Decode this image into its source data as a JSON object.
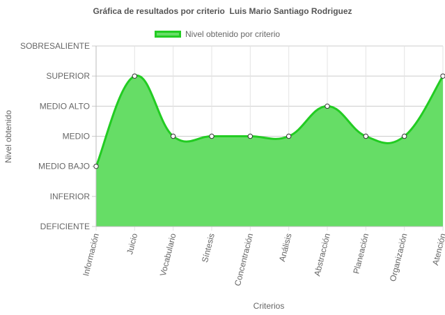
{
  "chart_data": {
    "type": "line",
    "title": "Gráfica de resultados por criterio  Luis Mario Santiago Rodriguez",
    "xlabel": "Criterios",
    "ylabel": "Nivel obtenido",
    "y_levels": [
      "DEFICIENTE",
      "INFERIOR",
      "MEDIO BAJO",
      "MEDIO",
      "MEDIO ALTO",
      "SUPERIOR",
      "SOBRESALIENTE"
    ],
    "categories": [
      "Información",
      "Juicio",
      "Vocabulario",
      "Síntesis",
      "Concentración",
      "Análisis",
      "Abstracción",
      "Planeación",
      "Organización",
      "Atención"
    ],
    "series": [
      {
        "name": "Nivel obtenido por criterio",
        "values": [
          2,
          5,
          3,
          3,
          3,
          3,
          4,
          3,
          3,
          5
        ],
        "value_labels": [
          "MEDIO BAJO",
          "SUPERIOR",
          "MEDIO",
          "MEDIO",
          "MEDIO",
          "MEDIO",
          "MEDIO ALTO",
          "MEDIO",
          "MEDIO",
          "SUPERIOR"
        ]
      }
    ],
    "ylim": [
      0,
      6
    ],
    "fill": true,
    "smooth": true,
    "grid": true,
    "legend_position": "top",
    "colors": {
      "fill": "#66dd66",
      "line": "#22cc22",
      "point": "#ffffff",
      "point_border": "#333333",
      "grid": "#cccccc"
    }
  }
}
